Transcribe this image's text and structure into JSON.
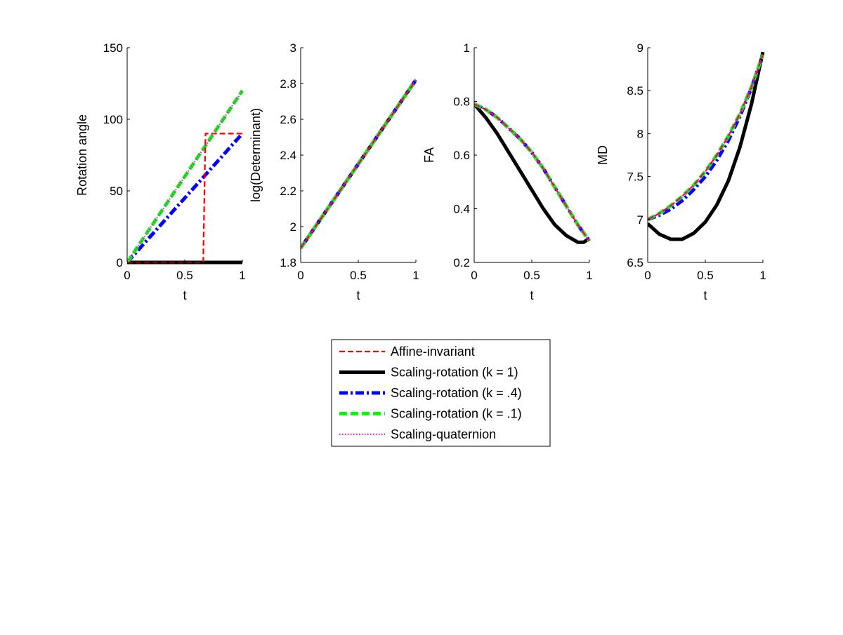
{
  "chart_data": [
    {
      "type": "line",
      "ylabel": "Rotation angle",
      "xlabel": "t",
      "xlim": [
        0,
        1
      ],
      "ylim": [
        0,
        150
      ],
      "xticks": [
        "0",
        "0.5",
        "1"
      ],
      "yticks": [
        "0",
        "50",
        "100",
        "150"
      ],
      "series": [
        {
          "name": "Affine-invariant",
          "x": [
            0,
            0.65,
            0.66,
            0.67,
            0.68,
            0.7,
            1
          ],
          "y": [
            0,
            0,
            0,
            45,
            90,
            90,
            90
          ]
        },
        {
          "name": "Scaling-rotation (k = 1)",
          "x": [
            0,
            1
          ],
          "y": [
            0,
            0
          ]
        },
        {
          "name": "Scaling-rotation (k = .4)",
          "x": [
            0,
            1
          ],
          "y": [
            0,
            90
          ]
        },
        {
          "name": "Scaling-rotation (k = .1)",
          "x": [
            0,
            1
          ],
          "y": [
            0,
            120
          ]
        },
        {
          "name": "Scaling-quaternion",
          "x": [
            0,
            1
          ],
          "y": [
            0,
            120
          ]
        }
      ]
    },
    {
      "type": "line",
      "ylabel": "log(Determinant)",
      "xlabel": "t",
      "xlim": [
        0,
        1
      ],
      "ylim": [
        1.8,
        3
      ],
      "xticks": [
        "0",
        "0.5",
        "1"
      ],
      "yticks": [
        "1.8",
        "2",
        "2.2",
        "2.4",
        "2.6",
        "2.8",
        "3"
      ],
      "series": [
        {
          "name": "Affine-invariant",
          "x": [
            0,
            1
          ],
          "y": [
            1.88,
            2.82
          ]
        },
        {
          "name": "Scaling-rotation (k = 1)",
          "x": [
            0,
            1
          ],
          "y": [
            1.88,
            2.82
          ]
        },
        {
          "name": "Scaling-rotation (k = .4)",
          "x": [
            0,
            1
          ],
          "y": [
            1.88,
            2.82
          ]
        },
        {
          "name": "Scaling-rotation (k = .1)",
          "x": [
            0,
            1
          ],
          "y": [
            1.88,
            2.82
          ]
        },
        {
          "name": "Scaling-quaternion",
          "x": [
            0,
            1
          ],
          "y": [
            1.88,
            2.82
          ]
        }
      ]
    },
    {
      "type": "line",
      "ylabel": "FA",
      "xlabel": "t",
      "xlim": [
        0,
        1
      ],
      "ylim": [
        0.2,
        1
      ],
      "xticks": [
        "0",
        "0.5",
        "1"
      ],
      "yticks": [
        "0.2",
        "0.4",
        "0.6",
        "0.8",
        "1"
      ],
      "series": [
        {
          "name": "Affine-invariant",
          "x": [
            0,
            0.1,
            0.2,
            0.3,
            0.4,
            0.5,
            0.6,
            0.7,
            0.8,
            0.9,
            1
          ],
          "y": [
            0.79,
            0.77,
            0.74,
            0.7,
            0.66,
            0.61,
            0.55,
            0.48,
            0.41,
            0.34,
            0.28
          ]
        },
        {
          "name": "Scaling-rotation (k = 1)",
          "x": [
            0,
            0.1,
            0.2,
            0.3,
            0.4,
            0.5,
            0.6,
            0.7,
            0.8,
            0.9,
            0.95,
            1
          ],
          "y": [
            0.79,
            0.74,
            0.68,
            0.61,
            0.54,
            0.47,
            0.4,
            0.34,
            0.3,
            0.275,
            0.275,
            0.29
          ]
        },
        {
          "name": "Scaling-rotation (k = .4)",
          "x": [
            0,
            0.1,
            0.2,
            0.3,
            0.4,
            0.5,
            0.6,
            0.7,
            0.8,
            0.9,
            1
          ],
          "y": [
            0.79,
            0.77,
            0.74,
            0.7,
            0.66,
            0.61,
            0.55,
            0.48,
            0.41,
            0.34,
            0.28
          ]
        },
        {
          "name": "Scaling-rotation (k = .1)",
          "x": [
            0,
            0.1,
            0.2,
            0.3,
            0.4,
            0.5,
            0.6,
            0.7,
            0.8,
            0.9,
            1
          ],
          "y": [
            0.79,
            0.77,
            0.74,
            0.7,
            0.66,
            0.61,
            0.55,
            0.48,
            0.41,
            0.34,
            0.28
          ]
        },
        {
          "name": "Scaling-quaternion",
          "x": [
            0,
            0.1,
            0.2,
            0.3,
            0.4,
            0.5,
            0.6,
            0.7,
            0.8,
            0.9,
            1
          ],
          "y": [
            0.79,
            0.77,
            0.74,
            0.7,
            0.66,
            0.61,
            0.55,
            0.48,
            0.41,
            0.34,
            0.28
          ]
        }
      ]
    },
    {
      "type": "line",
      "ylabel": "MD",
      "xlabel": "t",
      "xlim": [
        0,
        1
      ],
      "ylim": [
        6.5,
        9
      ],
      "xticks": [
        "0",
        "0.5",
        "1"
      ],
      "yticks": [
        "6.5",
        "7",
        "7.5",
        "8",
        "8.5",
        "9"
      ],
      "series": [
        {
          "name": "Affine-invariant",
          "x": [
            0,
            0.1,
            0.2,
            0.3,
            0.4,
            0.5,
            0.6,
            0.7,
            0.8,
            0.9,
            1
          ],
          "y": [
            7.0,
            7.07,
            7.16,
            7.27,
            7.4,
            7.56,
            7.75,
            7.97,
            8.23,
            8.54,
            8.92
          ]
        },
        {
          "name": "Scaling-rotation (k = 1)",
          "x": [
            0,
            0.1,
            0.2,
            0.3,
            0.4,
            0.5,
            0.6,
            0.7,
            0.8,
            0.9,
            1
          ],
          "y": [
            6.95,
            6.83,
            6.77,
            6.77,
            6.84,
            6.97,
            7.17,
            7.45,
            7.84,
            8.34,
            8.95
          ]
        },
        {
          "name": "Scaling-rotation (k = .4)",
          "x": [
            0,
            0.1,
            0.2,
            0.3,
            0.4,
            0.5,
            0.6,
            0.7,
            0.8,
            0.9,
            1
          ],
          "y": [
            7.0,
            7.05,
            7.12,
            7.22,
            7.35,
            7.5,
            7.69,
            7.92,
            8.2,
            8.53,
            8.92
          ]
        },
        {
          "name": "Scaling-rotation (k = .1)",
          "x": [
            0,
            0.1,
            0.2,
            0.3,
            0.4,
            0.5,
            0.6,
            0.7,
            0.8,
            0.9,
            1
          ],
          "y": [
            7.0,
            7.07,
            7.16,
            7.27,
            7.4,
            7.56,
            7.75,
            7.97,
            8.23,
            8.54,
            8.92
          ]
        },
        {
          "name": "Scaling-quaternion",
          "x": [
            0,
            0.1,
            0.2,
            0.3,
            0.4,
            0.5,
            0.6,
            0.7,
            0.8,
            0.9,
            1
          ],
          "y": [
            7.0,
            7.07,
            7.16,
            7.27,
            7.4,
            7.56,
            7.75,
            7.97,
            8.23,
            8.54,
            8.92
          ]
        }
      ]
    }
  ],
  "legend": {
    "placement": "bottom-center",
    "entries": [
      {
        "label": "Affine-invariant",
        "color": "#ff0000",
        "style": "dashed",
        "weight": "thin"
      },
      {
        "label": "Scaling-rotation (k = 1)",
        "color": "#000000",
        "style": "solid",
        "weight": "thick"
      },
      {
        "label": "Scaling-rotation (k = .4)",
        "color": "#0000ff",
        "style": "dashdot",
        "weight": "thick"
      },
      {
        "label": "Scaling-rotation (k = .1)",
        "color": "#00ff00",
        "style": "dashed",
        "weight": "thick"
      },
      {
        "label": "Scaling-quaternion",
        "color": "#ff00ff",
        "style": "dotted",
        "weight": "thin"
      }
    ]
  },
  "grid": false
}
